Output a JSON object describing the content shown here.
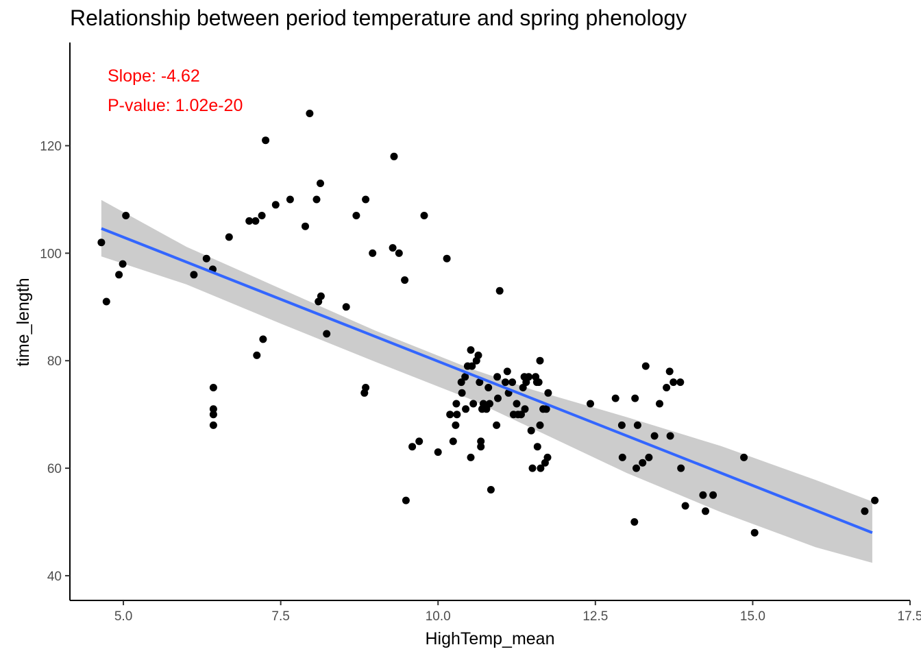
{
  "chart_data": {
    "type": "scatter",
    "title": "Relationship between period temperature and spring phenology",
    "xlabel": "HighTemp_mean",
    "ylabel": "time_length",
    "xlim": [
      4.15,
      17.5
    ],
    "ylim": [
      35.4,
      139.2
    ],
    "x_ticks": [
      5.0,
      7.5,
      10.0,
      12.5,
      15.0,
      17.5
    ],
    "x_tick_labels": [
      "5.0",
      "7.5",
      "10.0",
      "12.5",
      "15.0",
      "17.5"
    ],
    "y_ticks": [
      40,
      60,
      80,
      100,
      120
    ],
    "y_tick_labels": [
      "40",
      "60",
      "80",
      "100",
      "120"
    ],
    "grid": false,
    "annotations": {
      "slope": "Slope: -4.62",
      "pvalue": "P-value: 1.02e-20"
    },
    "colors": {
      "points": "#000000",
      "fit_line": "#3366FF",
      "confidence_band": "#cccccc",
      "annotation": "#ff0000"
    },
    "fit": {
      "x": [
        4.65,
        16.9
      ],
      "y": [
        104.6,
        48.0
      ],
      "band": {
        "x": [
          4.65,
          6.0,
          7.5,
          9.0,
          10.5,
          11.5,
          13.0,
          14.5,
          16.0,
          16.9
        ],
        "lower": [
          99.4,
          94.2,
          86.9,
          79.8,
          72.9,
          67.4,
          59.1,
          51.8,
          45.3,
          42.4
        ],
        "upper": [
          109.9,
          101.2,
          93.4,
          85.6,
          78.6,
          74.6,
          69.5,
          64.1,
          57.8,
          53.8
        ]
      }
    },
    "points": [
      [
        4.65,
        102
      ],
      [
        4.73,
        91
      ],
      [
        4.93,
        96
      ],
      [
        4.99,
        98
      ],
      [
        5.04,
        107
      ],
      [
        6.12,
        96
      ],
      [
        6.32,
        99
      ],
      [
        6.42,
        97
      ],
      [
        6.43,
        75
      ],
      [
        6.43,
        71
      ],
      [
        6.43,
        70
      ],
      [
        6.43,
        68
      ],
      [
        6.68,
        103
      ],
      [
        7.0,
        106
      ],
      [
        7.1,
        106
      ],
      [
        7.12,
        81
      ],
      [
        7.2,
        107
      ],
      [
        7.22,
        84
      ],
      [
        7.26,
        121
      ],
      [
        7.42,
        109
      ],
      [
        7.65,
        110
      ],
      [
        7.89,
        105
      ],
      [
        7.96,
        126
      ],
      [
        8.07,
        110
      ],
      [
        8.1,
        91
      ],
      [
        8.13,
        113
      ],
      [
        8.14,
        92
      ],
      [
        8.23,
        85
      ],
      [
        8.54,
        90
      ],
      [
        8.7,
        107
      ],
      [
        8.83,
        74
      ],
      [
        8.85,
        75
      ],
      [
        8.85,
        110
      ],
      [
        8.96,
        100
      ],
      [
        9.28,
        101
      ],
      [
        9.3,
        118
      ],
      [
        9.38,
        100
      ],
      [
        9.47,
        95
      ],
      [
        9.49,
        54
      ],
      [
        9.59,
        64
      ],
      [
        9.78,
        107
      ],
      [
        9.7,
        65
      ],
      [
        10.0,
        63
      ],
      [
        10.14,
        99
      ],
      [
        10.19,
        70
      ],
      [
        10.24,
        65
      ],
      [
        10.28,
        68
      ],
      [
        10.29,
        72
      ],
      [
        10.3,
        70
      ],
      [
        10.37,
        76
      ],
      [
        10.38,
        74
      ],
      [
        10.44,
        71
      ],
      [
        10.43,
        77
      ],
      [
        10.47,
        79
      ],
      [
        10.52,
        82
      ],
      [
        10.52,
        62
      ],
      [
        10.54,
        79
      ],
      [
        10.56,
        72
      ],
      [
        10.61,
        80
      ],
      [
        10.64,
        81
      ],
      [
        10.66,
        76
      ],
      [
        10.68,
        65
      ],
      [
        10.68,
        64
      ],
      [
        10.7,
        71
      ],
      [
        10.72,
        72
      ],
      [
        10.77,
        71
      ],
      [
        10.8,
        75
      ],
      [
        10.82,
        72
      ],
      [
        10.84,
        56
      ],
      [
        10.93,
        68
      ],
      [
        10.94,
        77
      ],
      [
        10.95,
        73
      ],
      [
        10.98,
        93
      ],
      [
        11.07,
        76
      ],
      [
        11.1,
        78
      ],
      [
        11.12,
        74
      ],
      [
        11.18,
        76
      ],
      [
        11.2,
        70
      ],
      [
        11.25,
        72
      ],
      [
        11.27,
        70
      ],
      [
        11.32,
        70
      ],
      [
        11.35,
        75
      ],
      [
        11.38,
        71
      ],
      [
        11.37,
        77
      ],
      [
        11.4,
        76
      ],
      [
        11.44,
        77
      ],
      [
        11.48,
        67
      ],
      [
        11.5,
        60
      ],
      [
        11.55,
        77
      ],
      [
        11.57,
        76
      ],
      [
        11.6,
        76
      ],
      [
        11.58,
        64
      ],
      [
        11.62,
        80
      ],
      [
        11.62,
        68
      ],
      [
        11.63,
        60
      ],
      [
        11.67,
        71
      ],
      [
        11.7,
        61
      ],
      [
        11.72,
        71
      ],
      [
        11.74,
        62
      ],
      [
        11.75,
        74
      ],
      [
        12.42,
        72
      ],
      [
        12.82,
        73
      ],
      [
        12.92,
        68
      ],
      [
        12.93,
        62
      ],
      [
        13.12,
        50
      ],
      [
        13.13,
        73
      ],
      [
        13.15,
        60
      ],
      [
        13.17,
        68
      ],
      [
        13.25,
        61
      ],
      [
        13.3,
        79
      ],
      [
        13.35,
        62
      ],
      [
        13.44,
        66
      ],
      [
        13.52,
        72
      ],
      [
        13.63,
        75
      ],
      [
        13.68,
        78
      ],
      [
        13.69,
        66
      ],
      [
        13.74,
        76
      ],
      [
        13.85,
        76
      ],
      [
        13.86,
        60
      ],
      [
        13.93,
        53
      ],
      [
        14.21,
        55
      ],
      [
        14.25,
        52
      ],
      [
        14.37,
        55
      ],
      [
        14.86,
        62
      ],
      [
        15.03,
        48
      ],
      [
        16.78,
        52
      ],
      [
        16.94,
        54
      ]
    ]
  }
}
